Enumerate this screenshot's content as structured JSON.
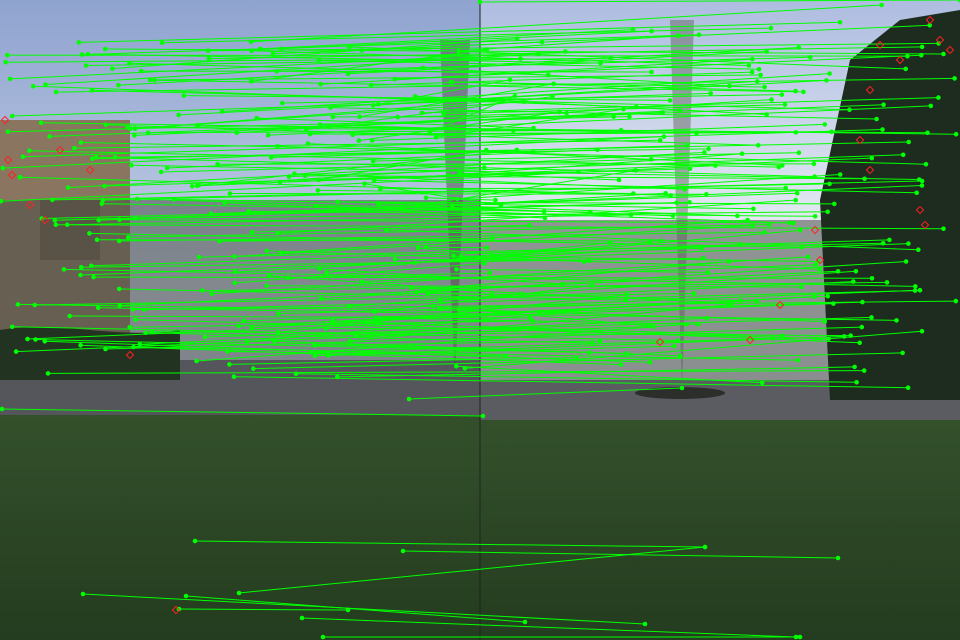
{
  "image": {
    "description_type": "stereo feature matching visualization",
    "panels": 2,
    "match_color": "#00ff00",
    "outlier_color": "#ff2020",
    "sky_color": "#c7d3ea",
    "grass_color": "#2d4a27",
    "path_color": "#4d4e55"
  }
}
